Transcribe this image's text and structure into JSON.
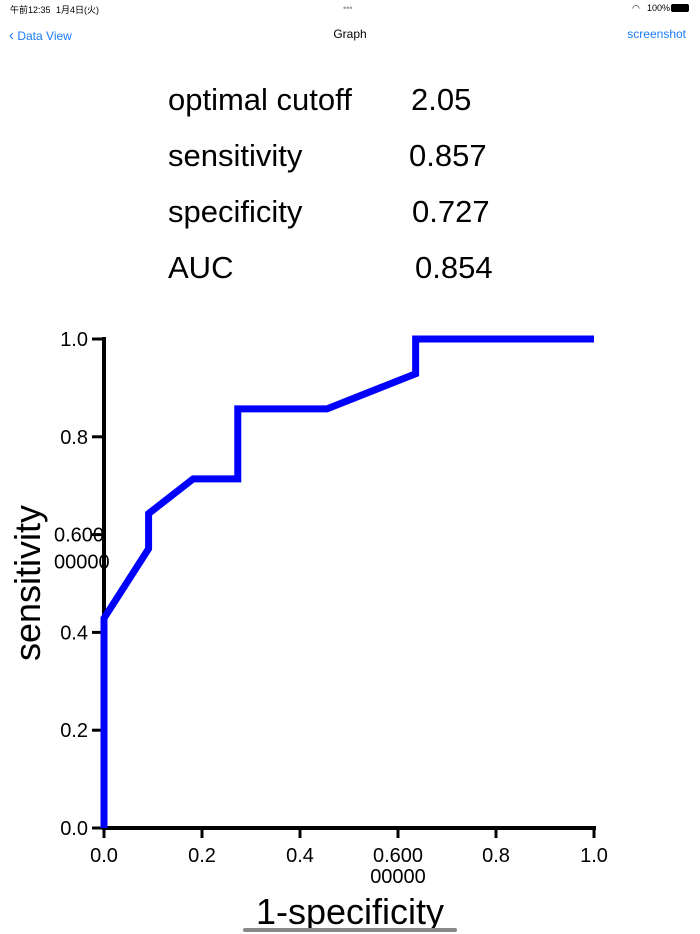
{
  "status_bar": {
    "time": "午前12:35",
    "date": "1月4日(火)",
    "battery": "100%"
  },
  "nav": {
    "back_label": "Data View",
    "title": "Graph",
    "action_label": "screenshot"
  },
  "stats": [
    {
      "label": "optimal cutoff",
      "value": "2.05"
    },
    {
      "label": "sensitivity",
      "value": "0.857"
    },
    {
      "label": "specificity",
      "value": "0.727"
    },
    {
      "label": "AUC",
      "value": "0.854"
    }
  ],
  "chart_data": {
    "type": "line",
    "title": "",
    "xlabel": "1-specificity",
    "ylabel": "sensitivity",
    "xlim": [
      0,
      1
    ],
    "ylim": [
      0,
      1
    ],
    "x_ticks": [
      "0.0",
      "0.2",
      "0.4",
      "0.600\n00000",
      "0.8",
      "1.0"
    ],
    "y_ticks": [
      "0.0",
      "0.2",
      "0.4",
      "0.600\n00000",
      "0.8",
      "1.0"
    ],
    "grid": false,
    "color": "#0000ff",
    "series": [
      {
        "x": [
          0,
          0,
          0.091,
          0.091,
          0.182,
          0.273,
          0.273,
          0.455,
          0.636,
          0.636,
          1.0
        ],
        "y": [
          0,
          0.429,
          0.571,
          0.643,
          0.714,
          0.714,
          0.857,
          0.857,
          0.929,
          1.0,
          1.0
        ]
      }
    ]
  }
}
